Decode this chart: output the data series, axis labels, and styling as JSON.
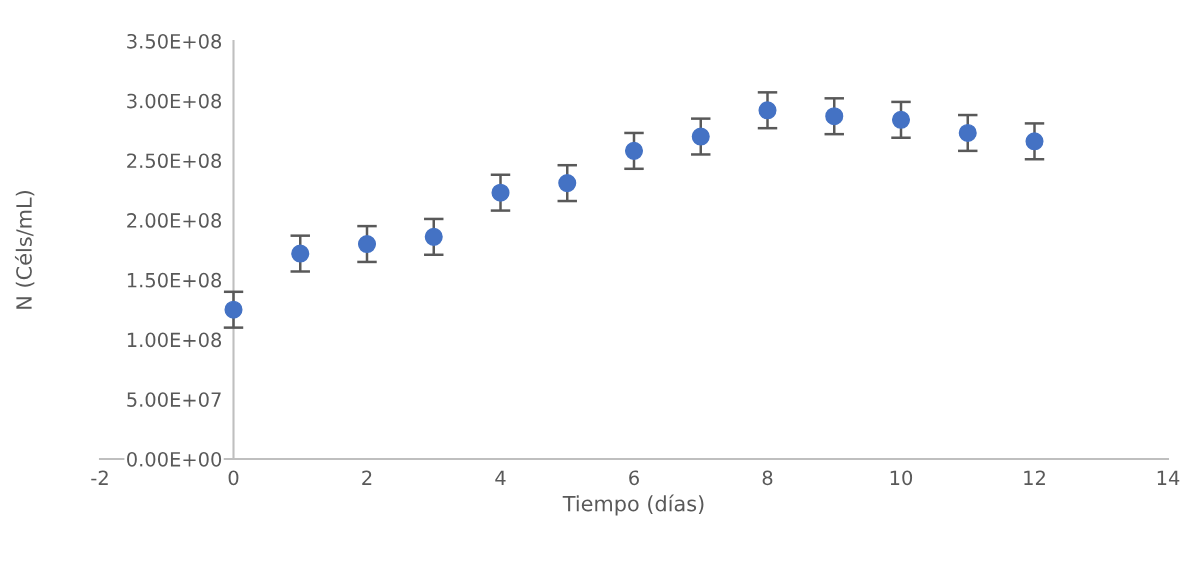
{
  "chart_data": {
    "type": "scatter",
    "xlabel": "Tiempo (días)",
    "ylabel": "N (Céls/mL)",
    "x": [
      0,
      1,
      2,
      3,
      4,
      5,
      6,
      7,
      8,
      9,
      10,
      11,
      12
    ],
    "series": [
      {
        "color": "#4472c4",
        "values": [
          125000000.0,
          172000000.0,
          180000000.0,
          186000000.0,
          223000000.0,
          231000000.0,
          258000000.0,
          270000000.0,
          292000000.0,
          287000000.0,
          284000000.0,
          273000000.0,
          266000000.0
        ],
        "errors": [
          15000000.0,
          15000000.0,
          15000000.0,
          15000000.0,
          15000000.0,
          15000000.0,
          15000000.0,
          15000000.0,
          15000000.0,
          15000000.0,
          15000000.0,
          15000000.0,
          15000000.0
        ]
      }
    ],
    "xlim": [
      -2,
      14
    ],
    "xticks": [
      -2,
      0,
      2,
      4,
      6,
      8,
      10,
      12,
      14
    ],
    "ylim": [
      0,
      350000000.0
    ],
    "yticks": [
      {
        "value": 0,
        "label": "0.00E+00"
      },
      {
        "value": 50000000.0,
        "label": "5.00E+07"
      },
      {
        "value": 100000000.0,
        "label": "1.00E+08"
      },
      {
        "value": 150000000.0,
        "label": "1.50E+08"
      },
      {
        "value": 200000000.0,
        "label": "2.00E+08"
      },
      {
        "value": 250000000.0,
        "label": "2.50E+08"
      },
      {
        "value": 300000000.0,
        "label": "3.00E+08"
      },
      {
        "value": 350000000.0,
        "label": "3.50E+08"
      }
    ],
    "marker": "circle",
    "grid": false,
    "legend": false
  }
}
